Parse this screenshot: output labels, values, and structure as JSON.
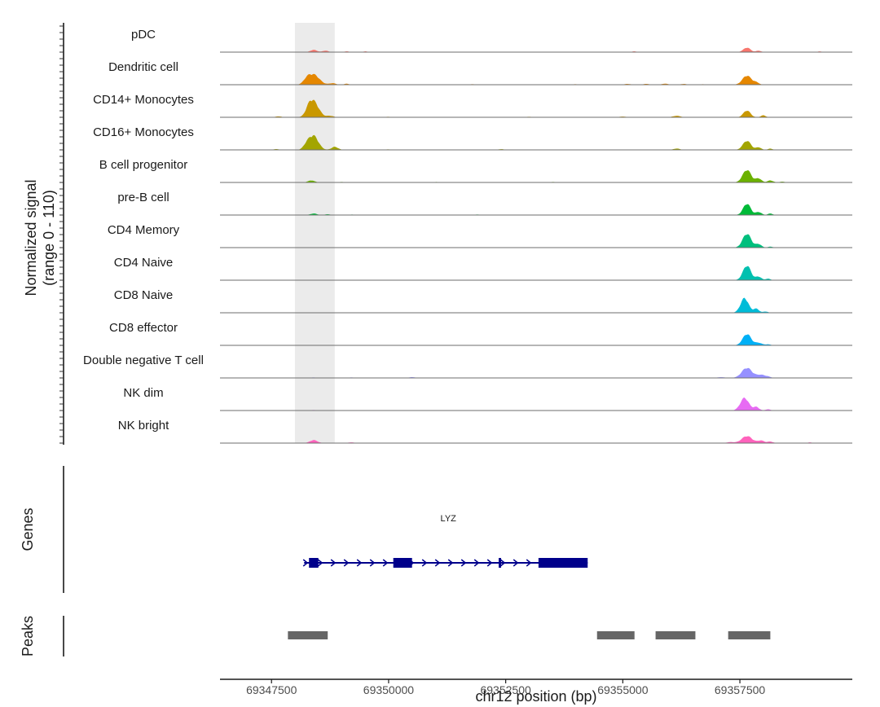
{
  "chart_data": {
    "type": "area",
    "title": "",
    "region": "chr12",
    "xlabel": "chr12 position (bp)",
    "ylabel": "Normalized signal",
    "ylabel_range": "(range 0 - 110)",
    "y_range": [
      0,
      110
    ],
    "x_range": [
      69346400,
      69359900
    ],
    "x_ticks": [
      69347500,
      69350000,
      69352500,
      69355000,
      69357500
    ],
    "x_tick_labels": [
      "69347500",
      "69350000",
      "69352500",
      "69355000",
      "69357500"
    ],
    "highlight_region": [
      69348000,
      69348850
    ],
    "tracks": [
      {
        "name": "pDC",
        "color": "#F8766D",
        "peaks": [
          [
            69348400,
            9,
            70
          ],
          [
            69348650,
            6,
            60
          ],
          [
            69349100,
            3,
            50
          ],
          [
            69349500,
            3,
            40
          ],
          [
            69355250,
            3,
            50
          ],
          [
            69357650,
            18,
            75
          ],
          [
            69357900,
            6,
            50
          ],
          [
            69359200,
            3,
            40
          ]
        ]
      },
      {
        "name": "Dendritic cell",
        "color": "#E58700",
        "peaks": [
          [
            69348400,
            40,
            120
          ],
          [
            69348250,
            15,
            70
          ],
          [
            69348800,
            6,
            70
          ],
          [
            69349100,
            4,
            50
          ],
          [
            69351800,
            2,
            60
          ],
          [
            69354000,
            2,
            60
          ],
          [
            69355100,
            3,
            70
          ],
          [
            69355500,
            3,
            70
          ],
          [
            69355900,
            4,
            70
          ],
          [
            69356300,
            3,
            70
          ],
          [
            69356700,
            2,
            60
          ],
          [
            69357650,
            36,
            95
          ],
          [
            69357850,
            8,
            60
          ]
        ]
      },
      {
        "name": "CD14+ Monocytes",
        "color": "#C99800",
        "peaks": [
          [
            69347650,
            4,
            60
          ],
          [
            69348400,
            60,
            110
          ],
          [
            69348300,
            20,
            70
          ],
          [
            69348750,
            6,
            70
          ],
          [
            69350000,
            2,
            70
          ],
          [
            69353000,
            2,
            70
          ],
          [
            69355000,
            3,
            70
          ],
          [
            69356150,
            6,
            80
          ],
          [
            69357650,
            27,
            75
          ],
          [
            69358000,
            8,
            50
          ]
        ]
      },
      {
        "name": "CD16+ Monocytes",
        "color": "#A3A500",
        "peaks": [
          [
            69347600,
            3,
            60
          ],
          [
            69348400,
            55,
            100
          ],
          [
            69348250,
            18,
            70
          ],
          [
            69348850,
            12,
            70
          ],
          [
            69350000,
            2,
            70
          ],
          [
            69352400,
            3,
            60
          ],
          [
            69356150,
            5,
            70
          ],
          [
            69357650,
            36,
            85
          ],
          [
            69357900,
            10,
            55
          ],
          [
            69358150,
            5,
            50
          ]
        ]
      },
      {
        "name": "B cell progenitor",
        "color": "#6BB100",
        "peaks": [
          [
            69348350,
            8,
            70
          ],
          [
            69349000,
            2,
            60
          ],
          [
            69351000,
            2,
            60
          ],
          [
            69353500,
            2,
            60
          ],
          [
            69357650,
            50,
            90
          ],
          [
            69357900,
            16,
            60
          ],
          [
            69358150,
            8,
            60
          ],
          [
            69358400,
            3,
            60
          ]
        ]
      },
      {
        "name": "pre-B cell",
        "color": "#00BA38",
        "peaks": [
          [
            69348400,
            6,
            70
          ],
          [
            69348700,
            3,
            60
          ],
          [
            69349200,
            2,
            50
          ],
          [
            69351900,
            2,
            60
          ],
          [
            69357650,
            45,
            80
          ],
          [
            69357900,
            12,
            60
          ],
          [
            69358150,
            6,
            50
          ]
        ]
      },
      {
        "name": "CD4 Memory",
        "color": "#00BF7D",
        "peaks": [
          [
            69348400,
            1,
            60
          ],
          [
            69357650,
            55,
            90
          ],
          [
            69357900,
            14,
            60
          ],
          [
            69358150,
            4,
            50
          ]
        ]
      },
      {
        "name": "CD4 Naive",
        "color": "#00C0AF",
        "peaks": [
          [
            69348400,
            1,
            60
          ],
          [
            69357650,
            58,
            85
          ],
          [
            69357900,
            14,
            60
          ],
          [
            69358100,
            6,
            50
          ]
        ]
      },
      {
        "name": "CD8 Naive",
        "color": "#00BCD8",
        "peaks": [
          [
            69348400,
            1,
            60
          ],
          [
            69357600,
            58,
            85
          ],
          [
            69357850,
            16,
            60
          ],
          [
            69358050,
            5,
            50
          ]
        ]
      },
      {
        "name": "CD8 effector",
        "color": "#00B0F6",
        "peaks": [
          [
            69348400,
            1,
            60
          ],
          [
            69357650,
            45,
            90
          ],
          [
            69357900,
            10,
            70
          ],
          [
            69358100,
            4,
            60
          ]
        ]
      },
      {
        "name": "Double negative T cell",
        "color": "#9590FF",
        "peaks": [
          [
            69348400,
            2,
            60
          ],
          [
            69349200,
            2,
            60
          ],
          [
            69350500,
            3,
            70
          ],
          [
            69357100,
            3,
            80
          ],
          [
            69357650,
            40,
            110
          ],
          [
            69357950,
            12,
            90
          ],
          [
            69358100,
            4,
            60
          ]
        ]
      },
      {
        "name": "NK dim",
        "color": "#E76BF3",
        "peaks": [
          [
            69348400,
            2,
            60
          ],
          [
            69357600,
            50,
            90
          ],
          [
            69357850,
            14,
            60
          ],
          [
            69358100,
            5,
            50
          ]
        ]
      },
      {
        "name": "NK bright",
        "color": "#FF62BC",
        "peaks": [
          [
            69348400,
            12,
            80
          ],
          [
            69349200,
            3,
            60
          ],
          [
            69357300,
            4,
            80
          ],
          [
            69357650,
            28,
            110
          ],
          [
            69357950,
            10,
            70
          ],
          [
            69358150,
            6,
            60
          ],
          [
            69359000,
            3,
            40
          ]
        ]
      }
    ],
    "genes_label": "Genes",
    "gene": {
      "name": "LYZ",
      "strand": "+",
      "start": 69348300,
      "end": 69354250,
      "exons": [
        [
          69348300,
          69348500
        ],
        [
          69350100,
          69350500
        ],
        [
          69352350,
          69352400
        ],
        [
          69353200,
          69354250
        ]
      ]
    },
    "peaks_label": "Peaks",
    "peak_regions": [
      [
        69347850,
        69348700
      ],
      [
        69354450,
        69355250
      ],
      [
        69355700,
        69356550
      ],
      [
        69357250,
        69358150
      ]
    ],
    "gene_color": "#00008B",
    "peak_color": "#666666",
    "highlight_color": "#EBEBEB"
  }
}
